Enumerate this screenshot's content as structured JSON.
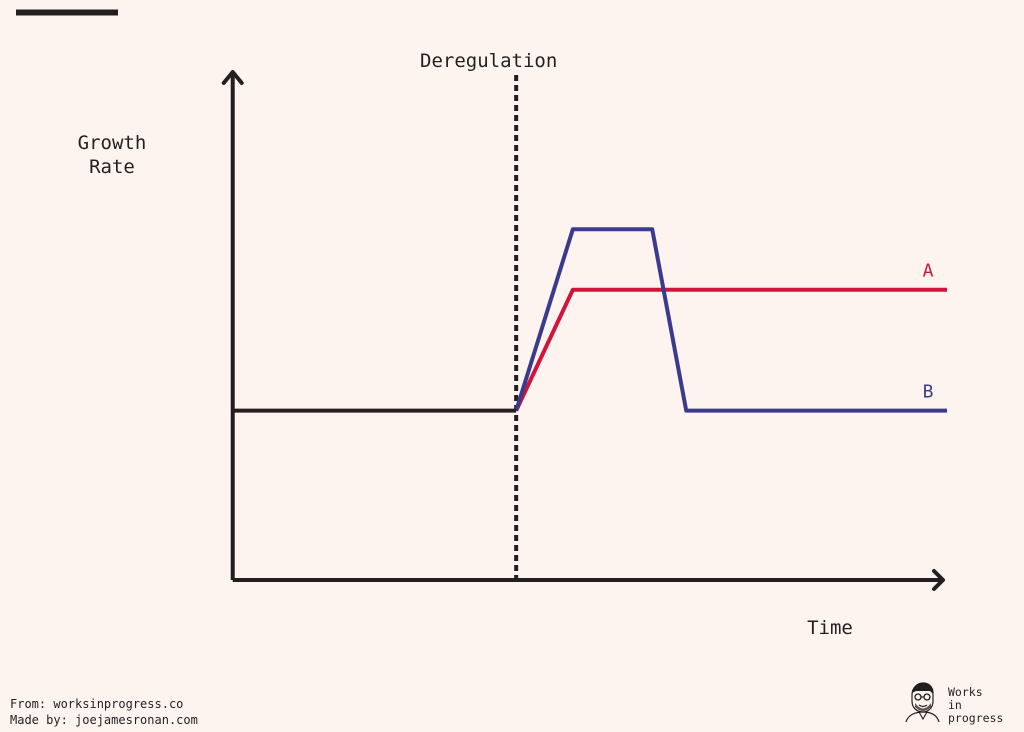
{
  "chart_data": {
    "type": "line",
    "title": "",
    "xlabel": "Time",
    "ylabel_lines": [
      "Growth",
      "Rate"
    ],
    "annotation": "Deregulation",
    "series": [
      {
        "name": "A",
        "color": "#d2143c",
        "points": [
          [
            0,
            1.0
          ],
          [
            2.5,
            1.0
          ],
          [
            3.0,
            1.5
          ],
          [
            6.3,
            1.5
          ]
        ]
      },
      {
        "name": "B",
        "color": "#3a3a8e",
        "points": [
          [
            0,
            1.0
          ],
          [
            2.5,
            1.0
          ],
          [
            3.0,
            1.75
          ],
          [
            3.7,
            1.75
          ],
          [
            4.0,
            1.0
          ],
          [
            6.3,
            1.0
          ]
        ]
      }
    ],
    "event_x": 2.5,
    "xlim": [
      -1.1,
      6.3
    ],
    "ylim": [
      0.3,
      2.4
    ],
    "grid": false,
    "axis_color": "#231f20"
  },
  "footer": {
    "source": "From: worksinprogress.co",
    "made_by": "Made by: joejamesronan.com"
  },
  "logo": {
    "line1": "Works",
    "line2": "in",
    "line3": "progress"
  }
}
